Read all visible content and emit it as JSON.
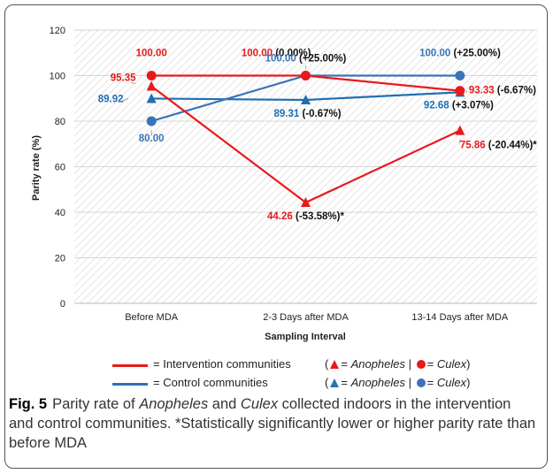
{
  "chart_data": {
    "type": "line",
    "categories": [
      "Before MDA",
      "2-3 Days after MDA",
      "13-14 Days after MDA"
    ],
    "xlabel": "Sampling Interval",
    "ylabel": "Parity rate (%)",
    "ylim": [
      0,
      120
    ],
    "yticks": [
      0,
      20,
      40,
      60,
      80,
      100,
      120
    ],
    "ytick_labels": [
      "0",
      "20",
      "40",
      "60",
      "80",
      "100",
      "120"
    ],
    "grid": true,
    "background": "hatched",
    "series": [
      {
        "group": "intervention",
        "marker": "triangle",
        "color": "#e8191c",
        "values": [
          95.35,
          44.26,
          75.86
        ],
        "labels": [
          "95.35",
          "44.26",
          "75.86"
        ],
        "changes": [
          "",
          "(-53.58%)*",
          "(-20.44%)*"
        ]
      },
      {
        "group": "intervention",
        "marker": "circle",
        "color": "#e8191c",
        "values": [
          100.0,
          100.0,
          93.33
        ],
        "labels": [
          "100.00",
          "100.00",
          "93.33"
        ],
        "changes": [
          "",
          "(0.00%)",
          "(-6.67%)"
        ]
      },
      {
        "group": "control",
        "marker": "triangle",
        "color": "#1f6fb4",
        "values": [
          89.92,
          89.31,
          92.68
        ],
        "labels": [
          "89.92",
          "89.31",
          "92.68"
        ],
        "changes": [
          "",
          "(-0.67%)",
          "(+3.07%)"
        ]
      },
      {
        "group": "control",
        "marker": "circle",
        "color": "#3b73b9",
        "values": [
          80.0,
          100.0,
          100.0
        ],
        "labels": [
          "80.00",
          "100.00",
          "100.00"
        ],
        "changes": [
          "",
          "(+25.00%)",
          "(+25.00%)"
        ]
      }
    ]
  },
  "legend": {
    "intervention_label": "= Intervention communities",
    "intervention_markers": {
      "prefix": "(",
      "tri_text": "= Anopheles",
      "sep": "|",
      "dot_text": "= Culex",
      "suffix": ")"
    },
    "control_label": "= Control communities",
    "control_markers": {
      "prefix": "(",
      "tri_text": "= Anopheles",
      "sep": "|",
      "dot_text": "= Culex",
      "suffix": ")"
    },
    "intervention_color": "#e8191c",
    "control_color": "#2e6fb7"
  },
  "caption": {
    "figure_label": "Fig. 5",
    "text": "Parity rate of Anopheles and Culex collected indoors in the intervention and control communities. *Statistically significantly lower or higher parity rate than before MDA"
  }
}
